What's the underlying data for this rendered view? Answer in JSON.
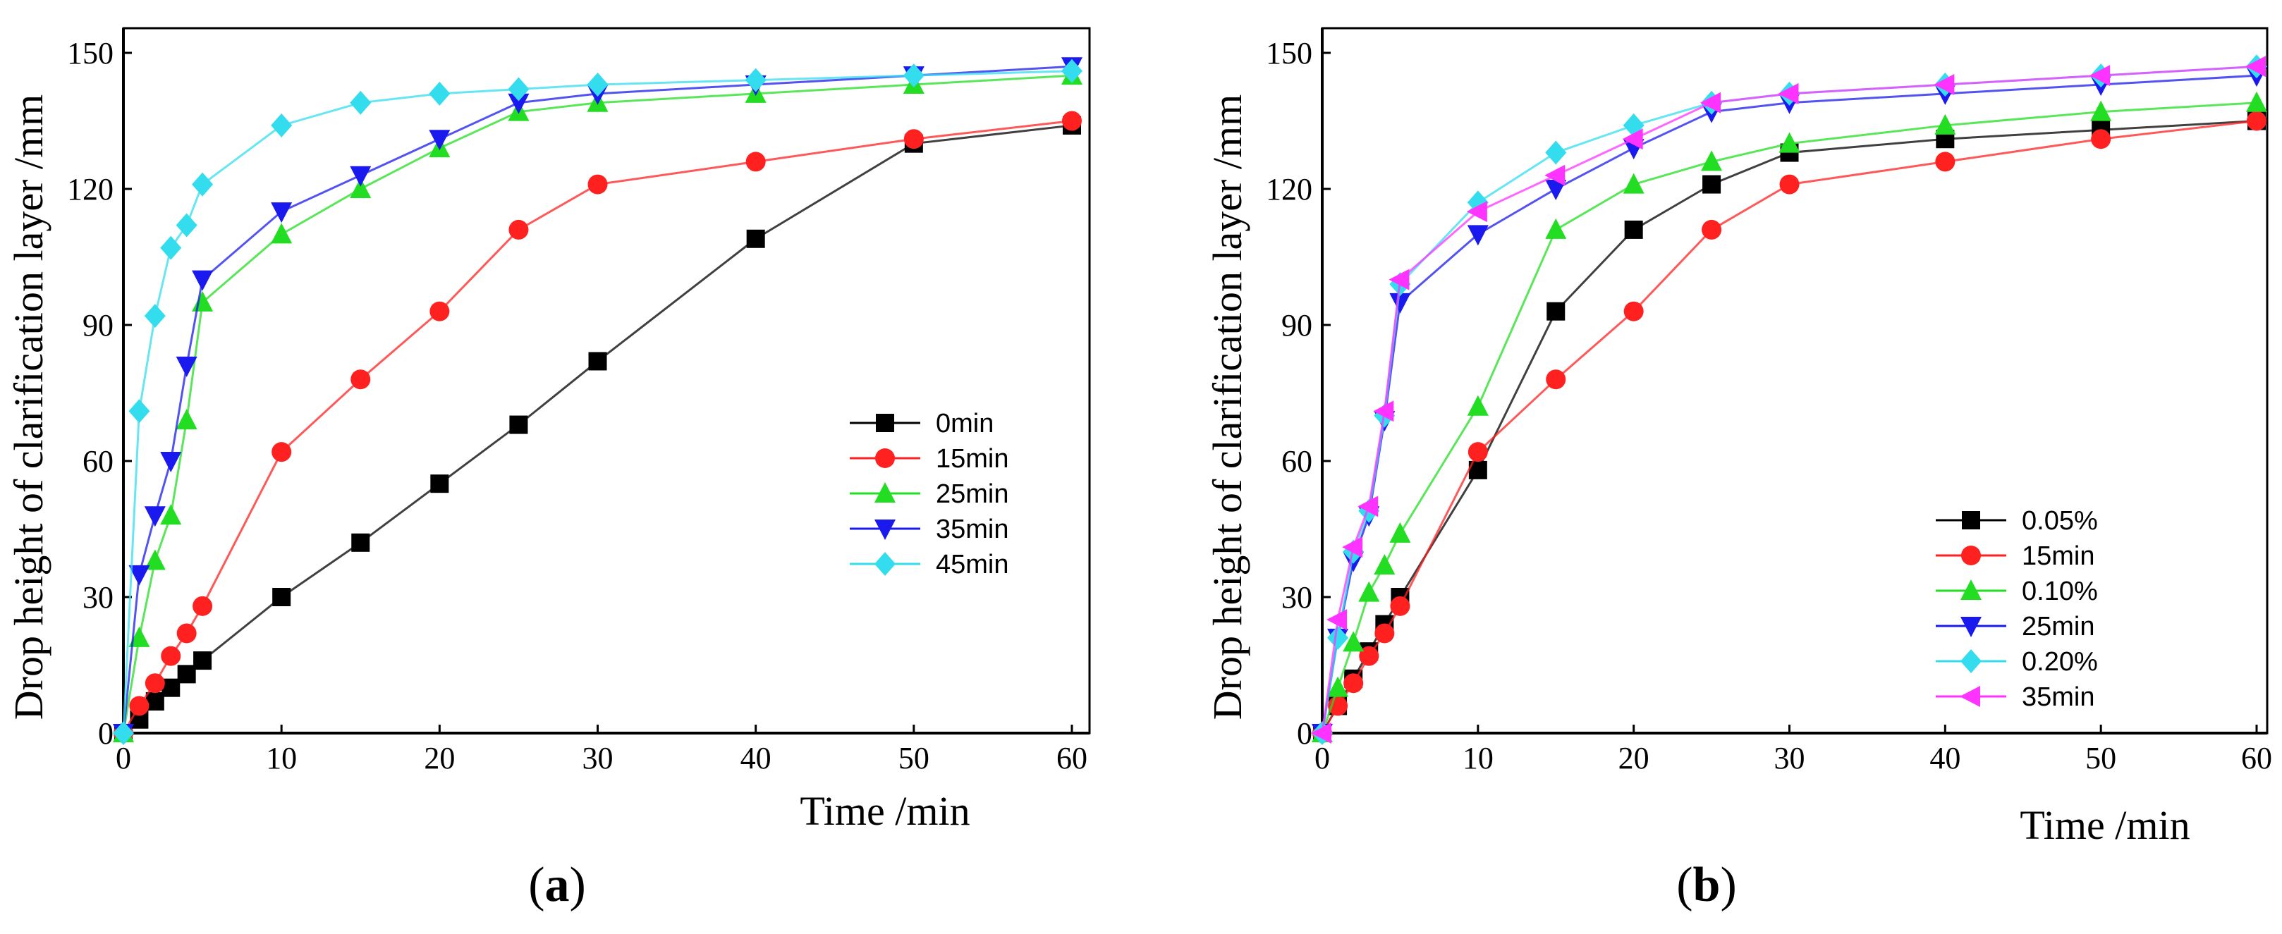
{
  "chart_data": [
    {
      "type": "line",
      "panel_label": "(a)",
      "panel_label_parts": {
        "open": "(",
        "letter": "a",
        "close": ")"
      },
      "xlabel": "Time /min",
      "ylabel": "Drop height of clarification layer /mm",
      "xlim": [
        0,
        60
      ],
      "ylim": [
        0,
        150
      ],
      "xticks": [
        0,
        10,
        20,
        30,
        40,
        50,
        60
      ],
      "xtick_labels": [
        "0",
        "10",
        "20",
        "30",
        "40",
        "50",
        "60"
      ],
      "yticks": [
        0,
        30,
        60,
        90,
        120,
        150
      ],
      "ytick_labels": [
        "0",
        "30",
        "60",
        "90",
        "120",
        "150"
      ],
      "legend_position": "right-middle",
      "series": [
        {
          "name": "0min",
          "color": "#000000",
          "marker": "square",
          "x": [
            0,
            1,
            2,
            3,
            4,
            5,
            10,
            15,
            20,
            25,
            30,
            40,
            50,
            60
          ],
          "y": [
            0,
            3,
            7,
            10,
            13,
            16,
            30,
            42,
            55,
            68,
            82,
            109,
            130,
            134
          ]
        },
        {
          "name": "15min",
          "color": "#ff2020",
          "marker": "circle",
          "x": [
            0,
            1,
            2,
            3,
            4,
            5,
            10,
            15,
            20,
            25,
            30,
            40,
            50,
            60
          ],
          "y": [
            0,
            6,
            11,
            17,
            22,
            28,
            62,
            78,
            93,
            111,
            121,
            126,
            131,
            135
          ]
        },
        {
          "name": "25min",
          "color": "#22dd22",
          "marker": "triangle-up",
          "x": [
            0,
            1,
            2,
            3,
            4,
            5,
            10,
            15,
            20,
            25,
            30,
            40,
            50,
            60
          ],
          "y": [
            0,
            21,
            38,
            48,
            69,
            95,
            110,
            120,
            129,
            137,
            139,
            141,
            143,
            145
          ]
        },
        {
          "name": "35min",
          "color": "#1a1aee",
          "marker": "triangle-down",
          "x": [
            0,
            1,
            2,
            3,
            4,
            5,
            10,
            15,
            20,
            25,
            30,
            40,
            50,
            60
          ],
          "y": [
            0,
            35,
            48,
            60,
            81,
            100,
            115,
            123,
            131,
            139,
            141,
            143,
            145,
            147
          ]
        },
        {
          "name": "45min",
          "color": "#33ddee",
          "marker": "diamond",
          "x": [
            0,
            1,
            2,
            3,
            4,
            5,
            10,
            15,
            20,
            25,
            30,
            40,
            50,
            60
          ],
          "y": [
            0,
            71,
            92,
            107,
            112,
            121,
            134,
            139,
            141,
            142,
            143,
            144,
            145,
            146
          ]
        }
      ]
    },
    {
      "type": "line",
      "panel_label": "(b)",
      "panel_label_parts": {
        "open": "(",
        "letter": "b",
        "close": ")"
      },
      "xlabel": "Time /min",
      "ylabel": "Drop height of clarification layer /mm",
      "xlim": [
        0,
        60
      ],
      "ylim": [
        0,
        150
      ],
      "xticks": [
        0,
        10,
        20,
        30,
        40,
        50,
        60
      ],
      "xtick_labels": [
        "0",
        "10",
        "20",
        "30",
        "40",
        "50",
        "60"
      ],
      "yticks": [
        0,
        30,
        60,
        90,
        120,
        150
      ],
      "ytick_labels": [
        "0",
        "30",
        "60",
        "90",
        "120",
        "150"
      ],
      "legend_position": "lower-middle",
      "series": [
        {
          "name": "0.05%",
          "color": "#000000",
          "marker": "square",
          "x": [
            0,
            1,
            2,
            3,
            4,
            5,
            10,
            15,
            20,
            25,
            30,
            40,
            50,
            60
          ],
          "y": [
            0,
            6,
            12,
            18,
            24,
            30,
            58,
            93,
            111,
            121,
            128,
            131,
            133,
            135
          ]
        },
        {
          "name": "15min",
          "color": "#ff2020",
          "marker": "circle",
          "x": [
            0,
            1,
            2,
            3,
            4,
            5,
            10,
            15,
            20,
            25,
            30,
            40,
            50,
            60
          ],
          "y": [
            0,
            6,
            11,
            17,
            22,
            28,
            62,
            78,
            93,
            111,
            121,
            126,
            131,
            135
          ]
        },
        {
          "name": "0.10%",
          "color": "#22dd22",
          "marker": "triangle-up",
          "x": [
            0,
            1,
            2,
            3,
            4,
            5,
            10,
            15,
            20,
            25,
            30,
            40,
            50,
            60
          ],
          "y": [
            0,
            10,
            20,
            31,
            37,
            44,
            72,
            111,
            121,
            126,
            130,
            134,
            137,
            139
          ]
        },
        {
          "name": "25min",
          "color": "#1a1aee",
          "marker": "triangle-down",
          "x": [
            0,
            1,
            2,
            3,
            4,
            5,
            10,
            15,
            20,
            25,
            30,
            40,
            50,
            60
          ],
          "y": [
            0,
            21,
            38,
            48,
            69,
            95,
            110,
            120,
            129,
            137,
            139,
            141,
            143,
            145
          ]
        },
        {
          "name": "0.20%",
          "color": "#33ddee",
          "marker": "diamond",
          "x": [
            0,
            1,
            2,
            3,
            4,
            5,
            10,
            15,
            20,
            25,
            30,
            40,
            50,
            60
          ],
          "y": [
            0,
            21,
            40,
            49,
            70,
            99,
            117,
            128,
            134,
            139,
            141,
            143,
            145,
            147
          ]
        },
        {
          "name": "35min",
          "color": "#ff33ff",
          "marker": "triangle-left",
          "x": [
            0,
            1,
            2,
            3,
            4,
            5,
            10,
            15,
            20,
            25,
            30,
            40,
            50,
            60
          ],
          "y": [
            0,
            25,
            41,
            50,
            71,
            100,
            115,
            123,
            131,
            139,
            141,
            143,
            145,
            147
          ]
        }
      ]
    }
  ]
}
